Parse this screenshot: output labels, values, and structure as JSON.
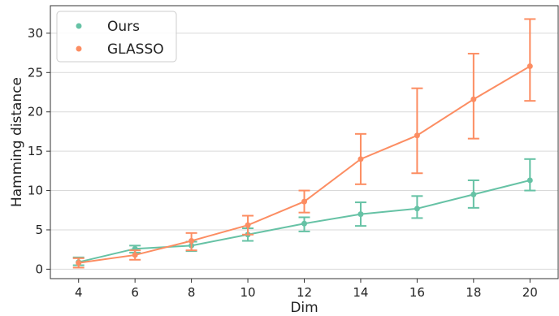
{
  "chart_data": {
    "type": "line",
    "title": "",
    "xlabel": "Dim",
    "ylabel": "Hamming distance",
    "x": [
      4,
      6,
      8,
      10,
      12,
      14,
      16,
      18,
      20
    ],
    "x_ticks": [
      "4",
      "6",
      "8",
      "10",
      "12",
      "14",
      "16",
      "18",
      "20"
    ],
    "y_ticks": [
      "0",
      "5",
      "10",
      "15",
      "20",
      "25",
      "30"
    ],
    "xlim": [
      3,
      21
    ],
    "ylim": [
      -1.2,
      33.5
    ],
    "grid": "horizontal",
    "legend_position": "top-left",
    "series": [
      {
        "name": "Ours",
        "color": "#66c2a5",
        "values": [
          0.9,
          2.6,
          3.0,
          4.4,
          5.8,
          7.0,
          7.7,
          9.5,
          11.3
        ],
        "err_low": [
          0.5,
          2.1,
          2.3,
          3.6,
          4.8,
          5.5,
          6.5,
          7.8,
          10.0
        ],
        "err_high": [
          1.5,
          3.0,
          3.5,
          5.2,
          6.6,
          8.5,
          9.3,
          11.3,
          14.0
        ]
      },
      {
        "name": "GLASSO",
        "color": "#fc8d62",
        "values": [
          0.8,
          1.8,
          3.6,
          5.6,
          8.6,
          14.0,
          17.0,
          21.6,
          25.8
        ],
        "err_low": [
          0.2,
          1.2,
          2.4,
          4.4,
          7.2,
          10.8,
          12.2,
          16.6,
          21.4
        ],
        "err_high": [
          1.4,
          2.4,
          4.6,
          6.8,
          10.0,
          17.2,
          23.0,
          27.4,
          31.8
        ]
      }
    ]
  }
}
